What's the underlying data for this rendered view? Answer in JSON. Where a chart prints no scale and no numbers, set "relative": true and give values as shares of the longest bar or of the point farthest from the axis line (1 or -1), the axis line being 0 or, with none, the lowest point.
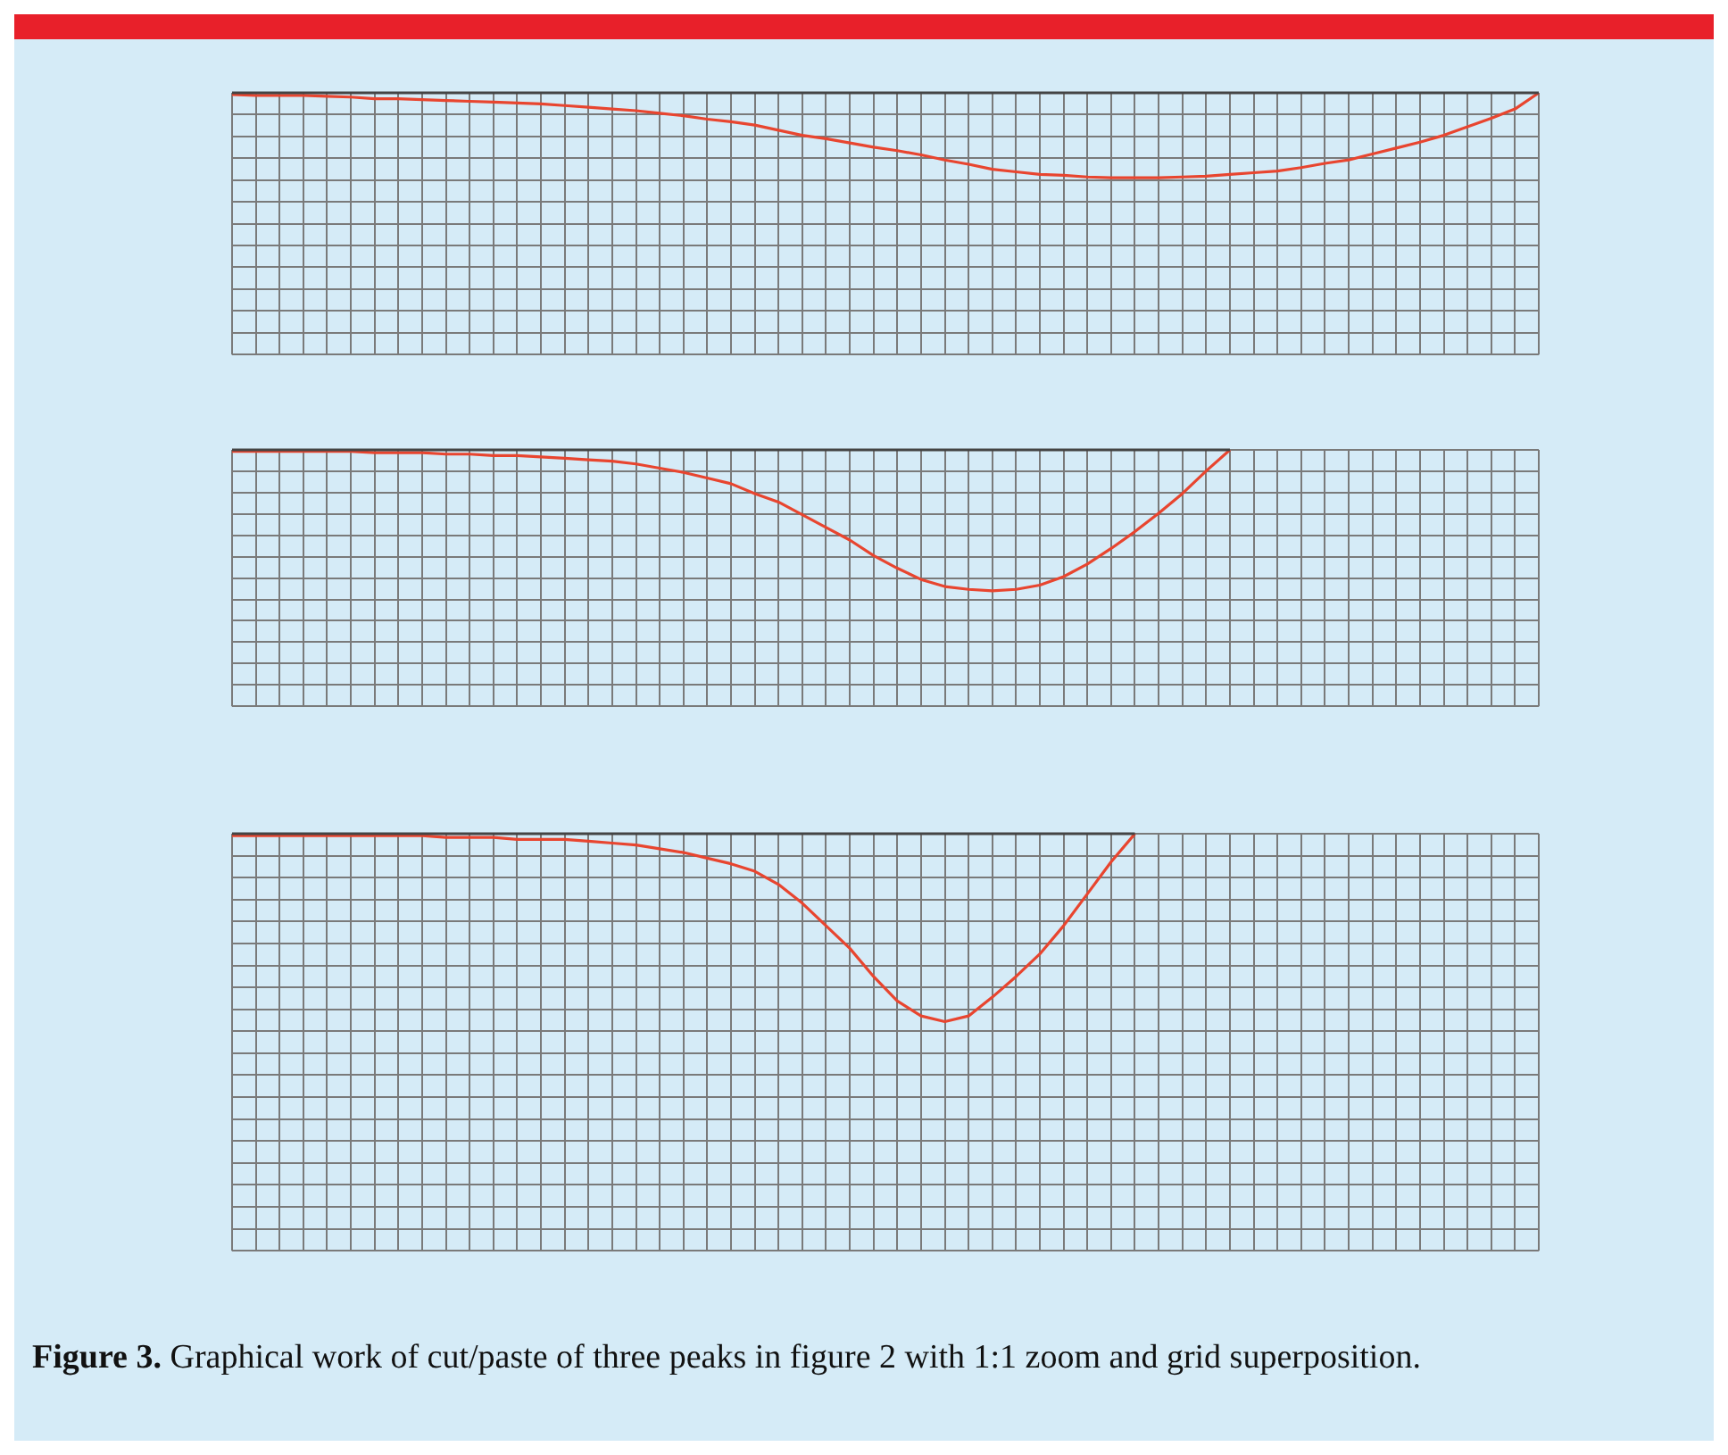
{
  "chart_data": [
    {
      "type": "line",
      "relative": true,
      "grid": true,
      "legend": false,
      "marker": "none",
      "categories": [
        null,
        null,
        null,
        null,
        null,
        null,
        null,
        null,
        null,
        null,
        null,
        null,
        null,
        null,
        null,
        null,
        null,
        null,
        null,
        null,
        null,
        null,
        null,
        null,
        null,
        null,
        null,
        null,
        null,
        null,
        null,
        null,
        null,
        null,
        null,
        null,
        null,
        null,
        null,
        null,
        null,
        null,
        null,
        null,
        null,
        null,
        null,
        null,
        null,
        null,
        null,
        null,
        null,
        null,
        null,
        null
      ],
      "series": [
        {
          "color": "#444444",
          "values": [
            0,
            0,
            0,
            0,
            0,
            0,
            0,
            0,
            0,
            0,
            0,
            0,
            0,
            0,
            0,
            0,
            0,
            0,
            0,
            0,
            0,
            0,
            0,
            0,
            0,
            0,
            0,
            0,
            0,
            0,
            0,
            0,
            0,
            0,
            0,
            0,
            0,
            0,
            0,
            0,
            0,
            0,
            0,
            0,
            0,
            0,
            0,
            0,
            0,
            0,
            0,
            0,
            0,
            0,
            0,
            0
          ]
        },
        {
          "color": "#e8452f",
          "values": [
            -0.02,
            -0.03,
            -0.03,
            -0.03,
            -0.04,
            -0.05,
            -0.07,
            -0.07,
            -0.08,
            -0.09,
            -0.1,
            -0.11,
            -0.12,
            -0.13,
            -0.15,
            -0.17,
            -0.19,
            -0.21,
            -0.24,
            -0.27,
            -0.31,
            -0.34,
            -0.38,
            -0.44,
            -0.5,
            -0.54,
            -0.59,
            -0.64,
            -0.68,
            -0.73,
            -0.79,
            -0.84,
            -0.9,
            -0.93,
            -0.96,
            -0.97,
            -0.99,
            -1,
            -1,
            -1,
            -0.99,
            -0.98,
            -0.96,
            -0.94,
            -0.92,
            -0.88,
            -0.83,
            -0.79,
            -0.72,
            -0.65,
            -0.58,
            -0.5,
            -0.4,
            -0.3,
            -0.19,
            0
          ]
        }
      ]
    },
    {
      "type": "line",
      "relative": true,
      "grid": true,
      "legend": false,
      "marker": "none",
      "categories": [
        null,
        null,
        null,
        null,
        null,
        null,
        null,
        null,
        null,
        null,
        null,
        null,
        null,
        null,
        null,
        null,
        null,
        null,
        null,
        null,
        null,
        null,
        null,
        null,
        null,
        null,
        null,
        null,
        null,
        null,
        null,
        null,
        null,
        null,
        null,
        null,
        null,
        null,
        null,
        null,
        null,
        null,
        null,
        null,
        null,
        null,
        null,
        null,
        null,
        null,
        null,
        null,
        null,
        null,
        null,
        null
      ],
      "series": [
        {
          "color": "#444444",
          "values": [
            0,
            0,
            0,
            0,
            0,
            0,
            0,
            0,
            0,
            0,
            0,
            0,
            0,
            0,
            0,
            0,
            0,
            0,
            0,
            0,
            0,
            0,
            0,
            0,
            0,
            0,
            0,
            0,
            0,
            0,
            0,
            0,
            0,
            0,
            0,
            0,
            0,
            0,
            0,
            0,
            0,
            0,
            0,
            null,
            null,
            null,
            null,
            null,
            null,
            null,
            null,
            null,
            null,
            null,
            null,
            null
          ]
        },
        {
          "color": "#e8452f",
          "values": [
            -0.01,
            -0.01,
            -0.01,
            -0.01,
            -0.01,
            -0.01,
            -0.02,
            -0.02,
            -0.02,
            -0.03,
            -0.03,
            -0.04,
            -0.04,
            -0.05,
            -0.06,
            -0.07,
            -0.08,
            -0.1,
            -0.13,
            -0.16,
            -0.2,
            -0.24,
            -0.31,
            -0.37,
            -0.46,
            -0.55,
            -0.64,
            -0.75,
            -0.84,
            -0.92,
            -0.97,
            -0.99,
            -1,
            -0.99,
            -0.96,
            -0.9,
            -0.81,
            -0.7,
            -0.58,
            -0.45,
            -0.31,
            -0.15,
            0,
            null,
            null,
            null,
            null,
            null,
            null,
            null,
            null,
            null,
            null,
            null,
            null,
            null
          ]
        }
      ]
    },
    {
      "type": "line",
      "relative": true,
      "grid": true,
      "legend": false,
      "marker": "none",
      "categories": [
        null,
        null,
        null,
        null,
        null,
        null,
        null,
        null,
        null,
        null,
        null,
        null,
        null,
        null,
        null,
        null,
        null,
        null,
        null,
        null,
        null,
        null,
        null,
        null,
        null,
        null,
        null,
        null,
        null,
        null,
        null,
        null,
        null,
        null,
        null,
        null,
        null,
        null,
        null,
        null,
        null,
        null,
        null,
        null,
        null,
        null,
        null,
        null,
        null,
        null,
        null,
        null,
        null,
        null,
        null,
        null
      ],
      "series": [
        {
          "color": "#444444",
          "values": [
            0,
            0,
            0,
            0,
            0,
            0,
            0,
            0,
            0,
            0,
            0,
            0,
            0,
            0,
            0,
            0,
            0,
            0,
            0,
            0,
            0,
            0,
            0,
            0,
            0,
            0,
            0,
            0,
            0,
            0,
            0,
            0,
            0,
            0,
            0,
            0,
            0,
            0,
            0,
            null,
            null,
            null,
            null,
            null,
            null,
            null,
            null,
            null,
            null,
            null,
            null,
            null,
            null,
            null,
            null,
            null
          ]
        },
        {
          "color": "#e8452f",
          "values": [
            -0.01,
            -0.01,
            -0.01,
            -0.01,
            -0.01,
            -0.01,
            -0.01,
            -0.01,
            -0.01,
            -0.02,
            -0.02,
            -0.02,
            -0.03,
            -0.03,
            -0.03,
            -0.04,
            -0.05,
            -0.06,
            -0.08,
            -0.1,
            -0.13,
            -0.16,
            -0.2,
            -0.27,
            -0.37,
            -0.49,
            -0.61,
            -0.76,
            -0.89,
            -0.97,
            -1,
            -0.97,
            -0.87,
            -0.76,
            -0.64,
            -0.49,
            -0.32,
            -0.15,
            0,
            null,
            null,
            null,
            null,
            null,
            null,
            null,
            null,
            null,
            null,
            null,
            null,
            null,
            null,
            null,
            null,
            null
          ]
        }
      ],
      "annotations": [
        "Figure 3. Graphical work of cut/paste of three peaks in figure 2 with 1:1 zoom and grid superposition."
      ]
    }
  ]
}
